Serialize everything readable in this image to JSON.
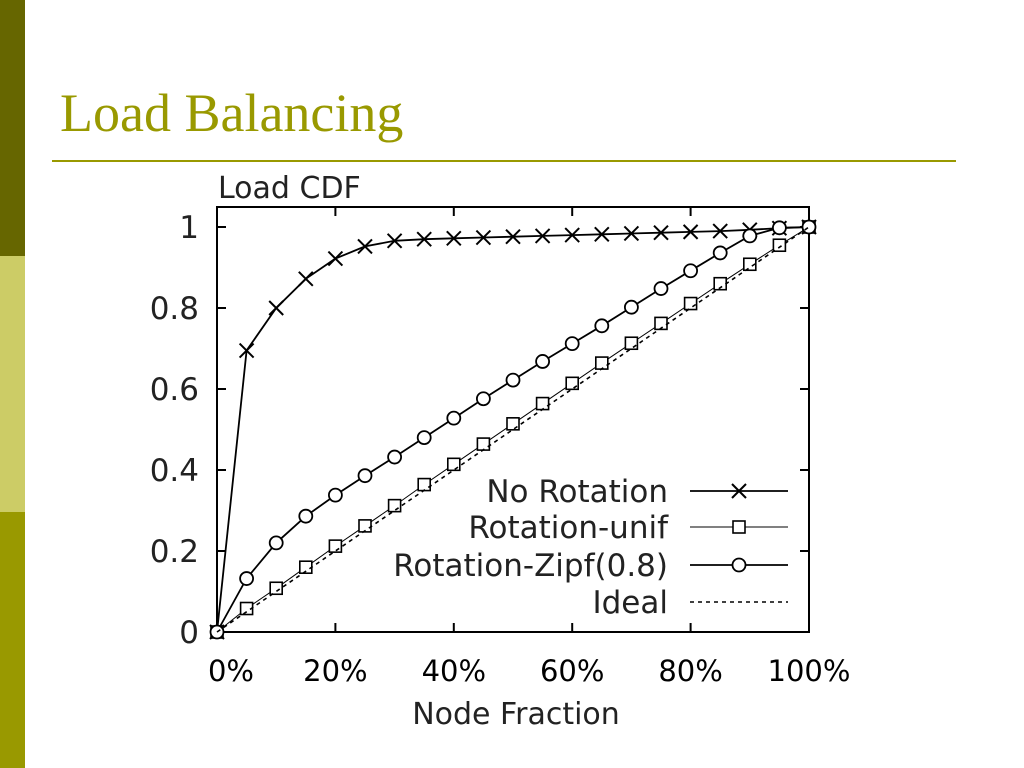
{
  "slide": {
    "title": "Load Balancing",
    "accent_color": "#999900",
    "band_colors": [
      "#666600",
      "#cccc66",
      "#999900"
    ]
  },
  "chart_data": {
    "type": "line",
    "title": "",
    "ylabel": "Load CDF",
    "xlabel": "Node Fraction",
    "xlim": [
      0,
      100
    ],
    "ylim": [
      0,
      1
    ],
    "x_tick_labels": [
      "0%",
      "20%",
      "40%",
      "60%",
      "80%",
      "100%"
    ],
    "x_ticks": [
      0,
      20,
      40,
      60,
      80,
      100
    ],
    "y_tick_labels": [
      "0",
      "0.2",
      "0.4",
      "0.6",
      "0.8",
      "1"
    ],
    "y_ticks": [
      0,
      0.2,
      0.4,
      0.6,
      0.8,
      1
    ],
    "grid": false,
    "legend_position": "bottom-right",
    "series": [
      {
        "name": "No Rotation",
        "marker": "x",
        "line": "solid",
        "x": [
          0,
          5,
          10,
          15,
          20,
          25,
          30,
          35,
          40,
          45,
          50,
          55,
          60,
          65,
          70,
          75,
          80,
          85,
          90,
          95,
          100
        ],
        "y": [
          0,
          0.695,
          0.8,
          0.872,
          0.922,
          0.952,
          0.966,
          0.97,
          0.972,
          0.974,
          0.976,
          0.978,
          0.98,
          0.982,
          0.984,
          0.986,
          0.988,
          0.99,
          0.993,
          0.997,
          1.0
        ]
      },
      {
        "name": "Rotation-unif",
        "marker": "square",
        "line": "solid-thin",
        "x": [
          0,
          5,
          10,
          15,
          20,
          25,
          30,
          35,
          40,
          45,
          50,
          55,
          60,
          65,
          70,
          75,
          80,
          85,
          90,
          95,
          100
        ],
        "y": [
          0,
          0.058,
          0.108,
          0.16,
          0.212,
          0.262,
          0.312,
          0.364,
          0.414,
          0.464,
          0.514,
          0.564,
          0.614,
          0.664,
          0.713,
          0.762,
          0.811,
          0.86,
          0.908,
          0.955,
          1.0
        ]
      },
      {
        "name": "Rotation-Zipf(0.8)",
        "marker": "circle",
        "line": "solid",
        "x": [
          0,
          5,
          10,
          15,
          20,
          25,
          30,
          35,
          40,
          45,
          50,
          55,
          60,
          65,
          70,
          75,
          80,
          85,
          90,
          95,
          100
        ],
        "y": [
          0,
          0.132,
          0.22,
          0.286,
          0.338,
          0.386,
          0.432,
          0.48,
          0.528,
          0.576,
          0.622,
          0.668,
          0.712,
          0.756,
          0.802,
          0.848,
          0.892,
          0.936,
          0.978,
          0.998,
          1.0
        ]
      },
      {
        "name": "Ideal",
        "marker": "none",
        "line": "dashed",
        "x": [
          0,
          100
        ],
        "y": [
          0,
          1.0
        ]
      }
    ]
  }
}
